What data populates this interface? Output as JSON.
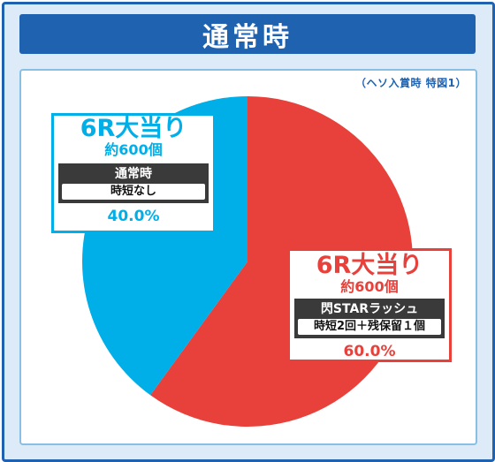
{
  "title": "通常時",
  "note": "（ヘソ入賞時 特図1）",
  "colors": {
    "frame": "#1f62b0",
    "red": "#e8403a",
    "blue": "#00aee8"
  },
  "chart_data": {
    "type": "pie",
    "slices": [
      {
        "value": 60.0,
        "color": "#e8403a",
        "label": "6R大当り",
        "sub": "約600個",
        "mode": "閃STARラッシュ",
        "detail": "時短2回＋残保留１個",
        "pct": "60.0%"
      },
      {
        "value": 40.0,
        "color": "#00aee8",
        "label": "6R大当り",
        "sub": "約600個",
        "mode": "通常時",
        "detail": "時短なし",
        "pct": "40.0%"
      }
    ]
  }
}
